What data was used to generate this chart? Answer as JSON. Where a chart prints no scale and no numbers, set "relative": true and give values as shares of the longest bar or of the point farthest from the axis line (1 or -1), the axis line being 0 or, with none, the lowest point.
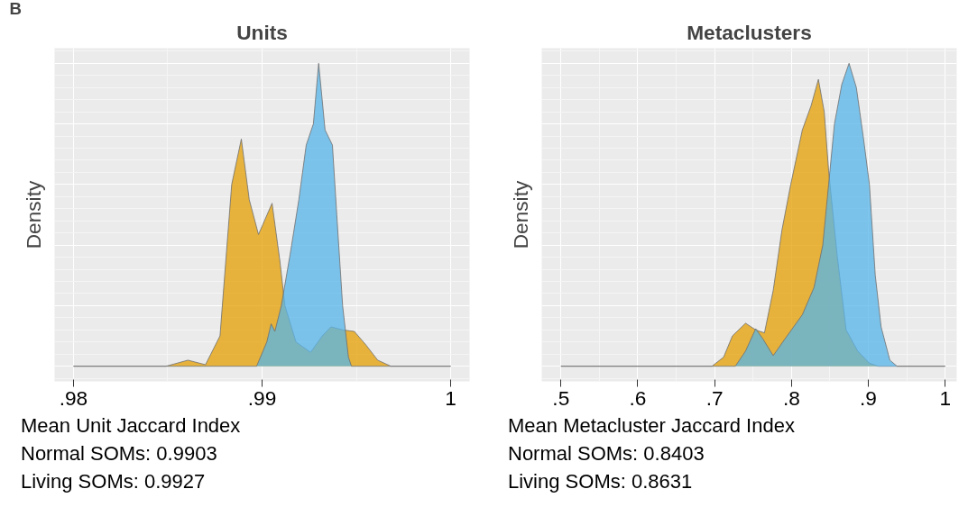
{
  "chart_data": [
    {
      "type": "area",
      "title": "Units",
      "ylabel": "Density",
      "relative": true,
      "grid": true,
      "xlim": [
        0.979,
        1.001
      ],
      "xticks": [
        {
          "value": 0.98,
          "label": ".98"
        },
        {
          "value": 0.99,
          "label": ".99"
        },
        1
      ],
      "annotations": [
        "B",
        "Mean Unit Jaccard Index",
        "Normal SOMs: 0.9903",
        "Living SOMs: 0.9927"
      ],
      "series": [
        {
          "color": "#E69F00",
          "x": [
            0.98,
            0.98491,
            0.98607,
            0.987,
            0.98777,
            0.98839,
            0.9889,
            0.98932,
            0.98981,
            0.99053,
            0.99094,
            0.99121,
            0.9918,
            0.99257,
            0.99319,
            0.99365,
            0.99427,
            0.99489,
            0.99551,
            0.99613,
            0.99683,
            1.0
          ],
          "values": [
            0,
            0,
            0.02,
            0.005,
            0.1,
            0.6,
            0.75,
            0.55,
            0.435,
            0.538,
            0.35,
            0.2,
            0.08,
            0.046,
            0.1,
            0.13,
            0.12,
            0.115,
            0.07,
            0.02,
            0,
            0
          ]
        },
        {
          "color": "#56B4E9",
          "x": [
            0.98,
            0.98971,
            0.99025,
            0.99048,
            0.99068,
            0.99102,
            0.99149,
            0.99195,
            0.99234,
            0.99272,
            0.993,
            0.99334,
            0.99373,
            0.99396,
            0.99427,
            0.99458,
            0.99474,
            1.0
          ],
          "values": [
            0,
            0,
            0.08,
            0.14,
            0.115,
            0.2,
            0.37,
            0.55,
            0.73,
            0.8,
            1.0,
            0.78,
            0.73,
            0.5,
            0.2,
            0.03,
            0,
            0
          ]
        }
      ]
    },
    {
      "type": "area",
      "title": "Metaclusters",
      "ylabel": "Density",
      "relative": true,
      "grid": true,
      "xlim": [
        0.475,
        1.015
      ],
      "xticks": [
        {
          "value": 0.5,
          "label": ".5"
        },
        {
          "value": 0.6,
          "label": ".6"
        },
        {
          "value": 0.7,
          "label": ".7"
        },
        {
          "value": 0.8,
          "label": ".8"
        },
        {
          "value": 0.9,
          "label": ".9"
        },
        1
      ],
      "annotations": [
        "Mean Metacluster Jaccard Index",
        "Normal SOMs: 0.8403",
        "Living SOMs: 0.8631"
      ],
      "series": [
        {
          "color": "#E69F00",
          "x": [
            0.5,
            0.6965,
            0.7117,
            0.7231,
            0.7402,
            0.7534,
            0.7648,
            0.7762,
            0.7876,
            0.799,
            0.8141,
            0.8255,
            0.835,
            0.8426,
            0.8483,
            0.8597,
            0.8711,
            0.8862,
            0.9014,
            0.9128,
            1.0
          ],
          "values": [
            0,
            0,
            0.03,
            0.1,
            0.142,
            0.12,
            0.11,
            0.25,
            0.45,
            0.6,
            0.78,
            0.86,
            0.947,
            0.84,
            0.646,
            0.36,
            0.12,
            0.05,
            0.01,
            0,
            0
          ]
        },
        {
          "color": "#56B4E9",
          "x": [
            0.5,
            0.7269,
            0.7402,
            0.7534,
            0.7629,
            0.7762,
            0.7914,
            0.8141,
            0.8293,
            0.8407,
            0.8483,
            0.8559,
            0.8654,
            0.8749,
            0.8844,
            0.8938,
            0.9014,
            0.909,
            0.9166,
            0.928,
            0.9374,
            1.0
          ],
          "values": [
            0,
            0,
            0.05,
            0.124,
            0.09,
            0.035,
            0.09,
            0.17,
            0.26,
            0.4,
            0.6,
            0.8,
            0.93,
            1.0,
            0.92,
            0.75,
            0.6,
            0.3,
            0.13,
            0.02,
            0,
            0
          ]
        }
      ]
    }
  ]
}
